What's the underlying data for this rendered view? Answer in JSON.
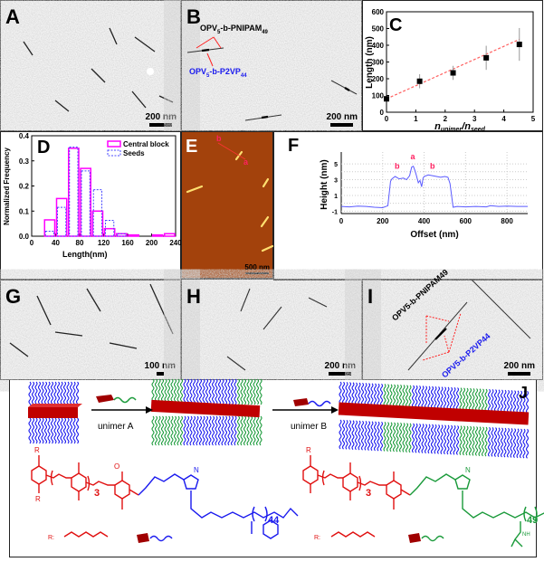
{
  "panels": {
    "A": {
      "label": "A",
      "scale": "200 nm"
    },
    "B": {
      "label": "B",
      "scale": "200 nm",
      "annotation_top": "OPV5-b-PNIPAM49",
      "annotation_bottom": "OPV5-b-P2VP44",
      "top_main": "OPV",
      "top_sub1": "5",
      "top_mid": "-b-PNIPAM",
      "top_sub2": "49",
      "bot_main": "OPV",
      "bot_sub1": "5",
      "bot_mid": "-b-P2VP",
      "bot_sub2": "44"
    },
    "C": {
      "label": "C"
    },
    "D": {
      "label": "D"
    },
    "E": {
      "label": "E",
      "scale": "500 nm",
      "mark_a": "a",
      "mark_b": "b"
    },
    "F": {
      "label": "F"
    },
    "G": {
      "label": "G",
      "scale": "100 nm"
    },
    "H": {
      "label": "H",
      "scale": "200 nm"
    },
    "I": {
      "label": "I",
      "scale": "200 nm",
      "annotation_top": "OPV5-b-PNIPAM49",
      "annotation_bottom": "OPV5-b-P2VP44"
    },
    "J": {
      "label": "J",
      "unimer_a": "unimer A",
      "unimer_b": "unimer B",
      "repeat_3": "3",
      "repeat_44": "44",
      "repeat_49": "49",
      "r_label": "R:",
      "atom_O": "O",
      "atom_N": "N",
      "atom_R": "R",
      "nh": "NH"
    }
  },
  "colors": {
    "pnipam": "#1a9a3a",
    "p2vp": "#1a1aee",
    "opv": "#e01010",
    "core": "#c00000",
    "fit": "#ff6060",
    "central": "#ff00ff",
    "seeds": "#4a4aff",
    "afm": "#a3420c",
    "profile": "#5a5aff",
    "marker": "#ff2060"
  },
  "chart_data": [
    {
      "panel": "C",
      "type": "scatter",
      "xlabel": "n_unimer / n_seed",
      "xlabel_main1": "n",
      "xlabel_sub1": "unimer",
      "xlabel_sep": "/",
      "xlabel_main2": "n",
      "xlabel_sub2": "seed",
      "ylabel": "Length (nm)",
      "xlim": [
        0,
        5
      ],
      "ylim": [
        0,
        600
      ],
      "xticks": [
        "0",
        "1",
        "2",
        "3",
        "4",
        "5"
      ],
      "yticks": [
        "0",
        "100",
        "200",
        "300",
        "400",
        "500",
        "600"
      ],
      "x": [
        0,
        1.13,
        2.27,
        3.4,
        4.53
      ],
      "y": [
        80,
        185,
        235,
        325,
        405
      ],
      "yerr": [
        0,
        42,
        42,
        72,
        98
      ],
      "fit": {
        "style": "dashed",
        "x": [
          0,
          4.53
        ],
        "y": [
          80,
          435
        ]
      }
    },
    {
      "panel": "D",
      "type": "bar",
      "xlabel": "Length(nm)",
      "ylabel": "Normalized Frequency",
      "xlim": [
        0,
        240
      ],
      "ylim": [
        0,
        0.4
      ],
      "xticks": [
        "0",
        "40",
        "80",
        "120",
        "160",
        "200",
        "240"
      ],
      "yticks": [
        "0.0",
        "0.1",
        "0.2",
        "0.3",
        "0.4"
      ],
      "bin_starts": [
        20,
        40,
        60,
        80,
        100,
        120,
        140,
        160,
        180,
        200,
        220
      ],
      "bin_width": 20,
      "legend": "top-right",
      "series": [
        {
          "name": "Central block",
          "values": [
            0.065,
            0.15,
            0.35,
            0.27,
            0.1,
            0.03,
            0.01,
            0.005,
            0,
            0.005,
            0.01
          ]
        },
        {
          "name": "Seeds",
          "values": [
            0.02,
            0.115,
            0.355,
            0.26,
            0.185,
            0.063,
            0.01,
            0,
            0,
            0,
            0
          ]
        }
      ]
    },
    {
      "panel": "F",
      "type": "line",
      "xlabel": "Offset (nm)",
      "ylabel": "Height (nm)",
      "xlim": [
        0,
        900
      ],
      "ylim": [
        -1.3,
        6.5
      ],
      "xticks": [
        "0",
        "200",
        "400",
        "600",
        "800"
      ],
      "yticks": [
        "-1",
        "1",
        "3",
        "5"
      ],
      "grid": true,
      "x": [
        0,
        40,
        80,
        120,
        160,
        200,
        225,
        238,
        245,
        260,
        280,
        300,
        315,
        330,
        340,
        348,
        355,
        362,
        372,
        380,
        388,
        395,
        400,
        420,
        440,
        460,
        480,
        500,
        515,
        525,
        540,
        560,
        600,
        650,
        700,
        720,
        760,
        800,
        850,
        900
      ],
      "y": [
        -0.4,
        -0.45,
        -0.35,
        -0.4,
        -0.5,
        -0.55,
        -0.3,
        2.8,
        3.1,
        3.4,
        3.1,
        3.2,
        3.0,
        3.5,
        4.6,
        4.7,
        4.2,
        3.6,
        2.6,
        2.9,
        2.1,
        3.2,
        3.4,
        3.6,
        3.5,
        3.4,
        3.3,
        3.4,
        3.3,
        2.5,
        -0.5,
        -0.4,
        -0.45,
        -0.4,
        -0.45,
        -0.3,
        -0.4,
        -0.35,
        -0.4,
        -0.4
      ],
      "annotations": [
        {
          "text": "b",
          "x": 270
        },
        {
          "text": "a",
          "x": 345
        },
        {
          "text": "b",
          "x": 440
        }
      ]
    }
  ]
}
